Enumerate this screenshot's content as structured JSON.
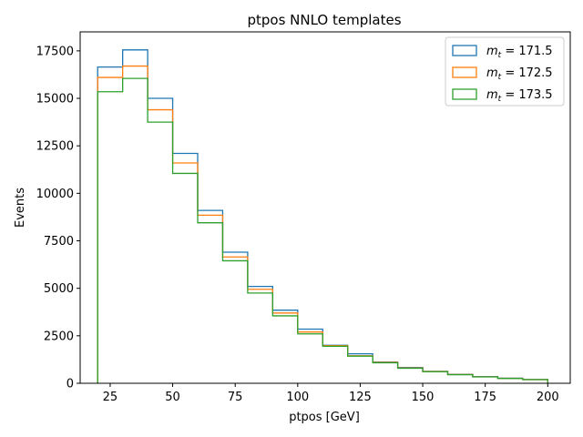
{
  "chart_data": {
    "type": "step-histogram",
    "title": "ptpos NNLO templates",
    "xlabel": "ptpos [GeV]",
    "ylabel": "Events",
    "xlim": [
      13,
      209
    ],
    "ylim": [
      0,
      18500
    ],
    "xticks": [
      25,
      50,
      75,
      100,
      125,
      150,
      175,
      200
    ],
    "yticks": [
      0,
      2500,
      5000,
      7500,
      10000,
      12500,
      15000,
      17500
    ],
    "xtick_labels": [
      "25",
      "50",
      "75",
      "100",
      "125",
      "150",
      "175",
      "200"
    ],
    "ytick_labels": [
      "0",
      "2500",
      "5000",
      "7500",
      "10000",
      "12500",
      "15000",
      "17500"
    ],
    "bin_edges": [
      20,
      30,
      40,
      50,
      60,
      70,
      80,
      90,
      100,
      110,
      120,
      130,
      140,
      150,
      160,
      170,
      180,
      190,
      200
    ],
    "legend_position": "top-right",
    "series": [
      {
        "name_prefix": "m",
        "name_subscript": "t",
        "name_value": " = 171.5",
        "color": "#1f77b4",
        "values": [
          16650,
          17550,
          15000,
          12100,
          9100,
          6900,
          5100,
          3850,
          2850,
          2000,
          1550,
          1120,
          830,
          630,
          470,
          350,
          270,
          200
        ]
      },
      {
        "name_prefix": "m",
        "name_subscript": "t",
        "name_value": " = 172.5",
        "color": "#ff7f0e",
        "values": [
          16100,
          16700,
          14400,
          11600,
          8850,
          6650,
          4950,
          3700,
          2700,
          1980,
          1450,
          1100,
          810,
          620,
          460,
          340,
          260,
          195
        ]
      },
      {
        "name_prefix": "m",
        "name_subscript": "t",
        "name_value": " = 173.5",
        "color": "#2ca02c",
        "values": [
          15350,
          16050,
          13750,
          11050,
          8450,
          6450,
          4750,
          3550,
          2600,
          1950,
          1430,
          1080,
          790,
          610,
          450,
          335,
          255,
          190
        ]
      }
    ]
  }
}
